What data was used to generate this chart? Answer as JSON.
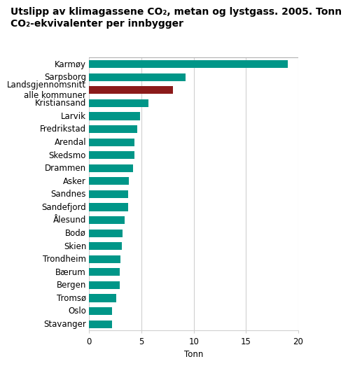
{
  "title_line1": "Utslipp av klimagassene CO₂, metan og lystgass. 2005. Tonn",
  "title_line2": "CO₂-ekvivalenter per innbygger",
  "xlabel": "Tonn",
  "categories": [
    "Karmøy",
    "Sarpsborg",
    "Landsgjennomsnitt\nalle kommuner",
    "Kristiansand",
    "Larvik",
    "Fredrikstad",
    "Arendal",
    "Skedsmo",
    "Drammen",
    "Asker",
    "Sandnes",
    "Sandefjord",
    "Ålesund",
    "Bodø",
    "Skien",
    "Trondheim",
    "Bærum",
    "Bergen",
    "Tromsø",
    "Oslo",
    "Stavanger"
  ],
  "values": [
    19.0,
    9.2,
    8.0,
    5.7,
    4.9,
    4.6,
    4.3,
    4.3,
    4.2,
    3.8,
    3.7,
    3.7,
    3.4,
    3.2,
    3.1,
    3.0,
    2.9,
    2.9,
    2.6,
    2.2,
    2.2
  ],
  "bar_colors": [
    "#009688",
    "#009688",
    "#8B1A1A",
    "#009688",
    "#009688",
    "#009688",
    "#009688",
    "#009688",
    "#009688",
    "#009688",
    "#009688",
    "#009688",
    "#009688",
    "#009688",
    "#009688",
    "#009688",
    "#009688",
    "#009688",
    "#009688",
    "#009688",
    "#009688"
  ],
  "xlim": [
    0,
    20
  ],
  "xticks": [
    0,
    5,
    10,
    15,
    20
  ],
  "background_color": "#ffffff",
  "grid_color": "#d0d0d0",
  "title_fontsize": 10,
  "label_fontsize": 8.5,
  "tick_fontsize": 8.5,
  "bar_height": 0.6
}
